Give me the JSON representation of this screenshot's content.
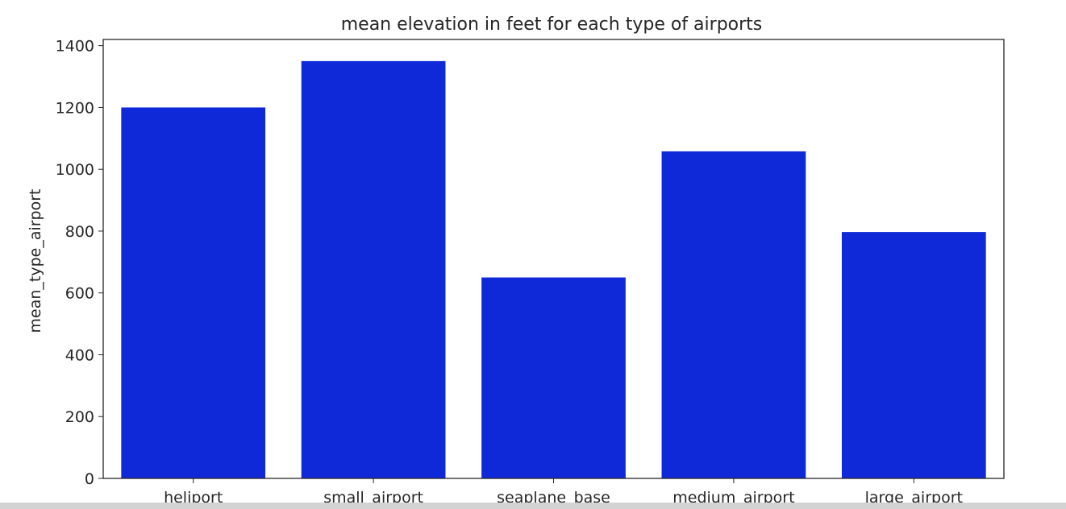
{
  "chart_data": {
    "type": "bar",
    "title": "mean elevation in feet for each type of airports",
    "xlabel": "",
    "ylabel": "mean_type_airport",
    "categories": [
      "heliport",
      "small_airport",
      "seaplane_base",
      "medium_airport",
      "large_airport"
    ],
    "values": [
      1200,
      1350,
      650,
      1058,
      797
    ],
    "ylim": [
      0,
      1420
    ],
    "yticks": [
      0,
      200,
      400,
      600,
      800,
      1000,
      1200,
      1400
    ],
    "grid": false,
    "bar_color": "#0f28d8"
  }
}
